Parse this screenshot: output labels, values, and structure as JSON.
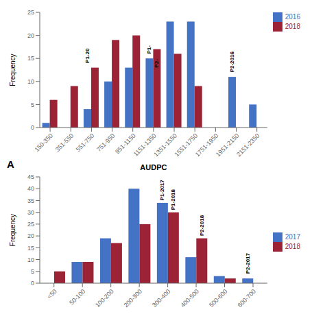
{
  "chart_data": [
    {
      "type": "bar",
      "label": "A",
      "xlabel": "AUDPC",
      "ylabel": "Frequency",
      "categories": [
        "150-350",
        "351-550",
        "551-750",
        "751-950",
        "951-1150",
        "1151-1350",
        "1351-1550",
        "1551-1750",
        "1751-1950",
        "1951-2150",
        "2151-2350"
      ],
      "series": [
        {
          "name": "2016",
          "color": "#4472C4",
          "values": [
            1,
            0,
            4,
            10,
            13,
            15,
            23,
            23,
            0,
            11,
            5
          ]
        },
        {
          "name": "2018",
          "color": "#9B2335",
          "values": [
            6,
            9,
            13,
            19,
            20,
            17,
            16,
            9,
            0,
            0,
            0
          ]
        }
      ],
      "ylim": [
        0,
        25
      ],
      "yticks": [
        0,
        5,
        10,
        15,
        20,
        25
      ],
      "grid": false,
      "legend": "upper right",
      "annotations": [
        {
          "text": "P1-20",
          "x": "551-750",
          "y": 14,
          "series": "2016"
        },
        {
          "text": "P1-",
          "x": "1151-1350",
          "y": 16,
          "series": "2016"
        },
        {
          "text": "P2-",
          "x": "1151-1350",
          "y": 13,
          "series": "2018"
        },
        {
          "text": "P2-2016",
          "x": "1951-2150",
          "y": 12,
          "series": "2016"
        }
      ]
    },
    {
      "type": "bar",
      "ylabel": "Frequency",
      "categories": [
        "<50",
        "50-100",
        "100-200",
        "200-300",
        "300-400",
        "400-500",
        "500-600",
        "600-700"
      ],
      "series": [
        {
          "name": "2017",
          "color": "#4472C4",
          "values": [
            0,
            9,
            19,
            40,
            34,
            11,
            3,
            2
          ]
        },
        {
          "name": "2018",
          "color": "#9B2335",
          "values": [
            5,
            9,
            17,
            25,
            30,
            19,
            2,
            0
          ]
        }
      ],
      "ylim": [
        0,
        45
      ],
      "yticks": [
        0,
        5,
        10,
        15,
        20,
        25,
        30,
        35,
        40,
        45
      ],
      "grid": false,
      "legend": "right",
      "annotations": [
        {
          "text": "P1-2017",
          "x": "300-400",
          "y": 35,
          "series": "2017"
        },
        {
          "text": "P1-2018",
          "x": "300-400",
          "y": 31,
          "series": "2018"
        },
        {
          "text": "P2-2018",
          "x": "400-500",
          "y": 20,
          "series": "2018"
        },
        {
          "text": "P2-2017",
          "x": "600-700",
          "y": 4,
          "series": "2017"
        }
      ]
    }
  ]
}
